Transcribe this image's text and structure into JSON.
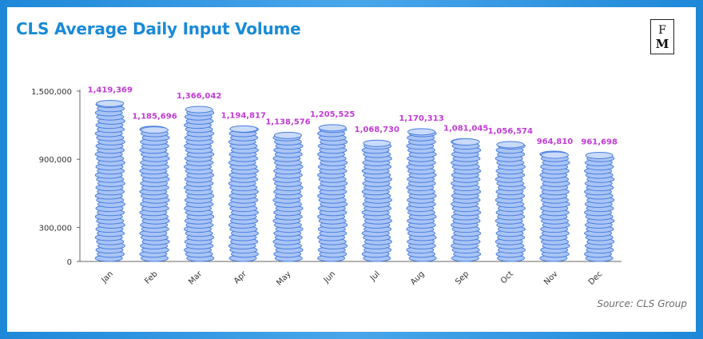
{
  "title": "CLS Average Daily Input Volume",
  "logo": {
    "line1": "F",
    "line2": "M"
  },
  "source": "Source: CLS Group",
  "colors": {
    "frame": "#1e88d8",
    "title": "#1a8ad6",
    "coin_fill": "#a9c4f5",
    "coin_stroke": "#4a7fe0",
    "data_label": "#c23bd6"
  },
  "chart_data": {
    "type": "bar",
    "title": "CLS Average Daily Input Volume",
    "xlabel": "",
    "ylabel": "",
    "categories": [
      "Jan",
      "Feb",
      "Mar",
      "Apr",
      "May",
      "Jun",
      "Jul",
      "Aug",
      "Sep",
      "Oct",
      "Nov",
      "Dec"
    ],
    "values": [
      1419369,
      1185696,
      1366042,
      1194817,
      1138576,
      1205525,
      1068730,
      1170313,
      1081045,
      1056574,
      964810,
      961698
    ],
    "value_labels": [
      "1,419,369",
      "1,185,696",
      "1,366,042",
      "1,194,817",
      "1,138,576",
      "1,205,525",
      "1,068,730",
      "1,170,313",
      "1,081,045",
      "1,056,574",
      "964,810",
      "961,698"
    ],
    "yticks": [
      0,
      300000,
      900000,
      1500000
    ],
    "ytick_labels": [
      "0",
      "300,000",
      "900,000",
      "1,500,000"
    ],
    "ylim": [
      0,
      1500000
    ],
    "grid": false,
    "legend": "none"
  }
}
